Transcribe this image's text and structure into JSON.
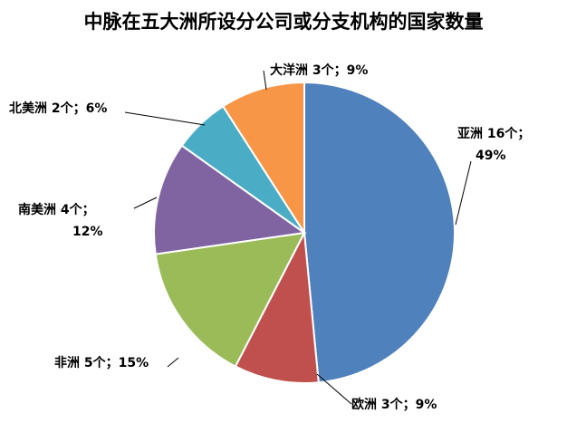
{
  "chart_data": {
    "type": "pie",
    "title": "中脉在五大洲所设分公司或分支机构的国家数量",
    "slices": [
      {
        "name": "亚洲",
        "value": 16,
        "percent": "49%",
        "color": "#4f81bd",
        "label_lines": [
          "亚洲 16个；",
          "49%"
        ]
      },
      {
        "name": "欧洲",
        "value": 3,
        "percent": "9%",
        "color": "#c0504d",
        "label_lines": [
          "欧洲 3个；9%"
        ]
      },
      {
        "name": "非洲",
        "value": 5,
        "percent": "15%",
        "color": "#9bbb59",
        "label_lines": [
          "非洲 5个；15%"
        ]
      },
      {
        "name": "南美洲",
        "value": 4,
        "percent": "12%",
        "color": "#8064a2",
        "label_lines": [
          "南美洲 4个；",
          "12%"
        ]
      },
      {
        "name": "北美洲",
        "value": 2,
        "percent": "6%",
        "color": "#4bacc6",
        "label_lines": [
          "北美洲 2个；6%"
        ]
      },
      {
        "name": "大洋洲",
        "value": 3,
        "percent": "9%",
        "color": "#f79646",
        "label_lines": [
          "大洋洲 3个；9%"
        ]
      }
    ],
    "start_angle": "12 o'clock",
    "direction": "clockwise",
    "legend": "none"
  }
}
